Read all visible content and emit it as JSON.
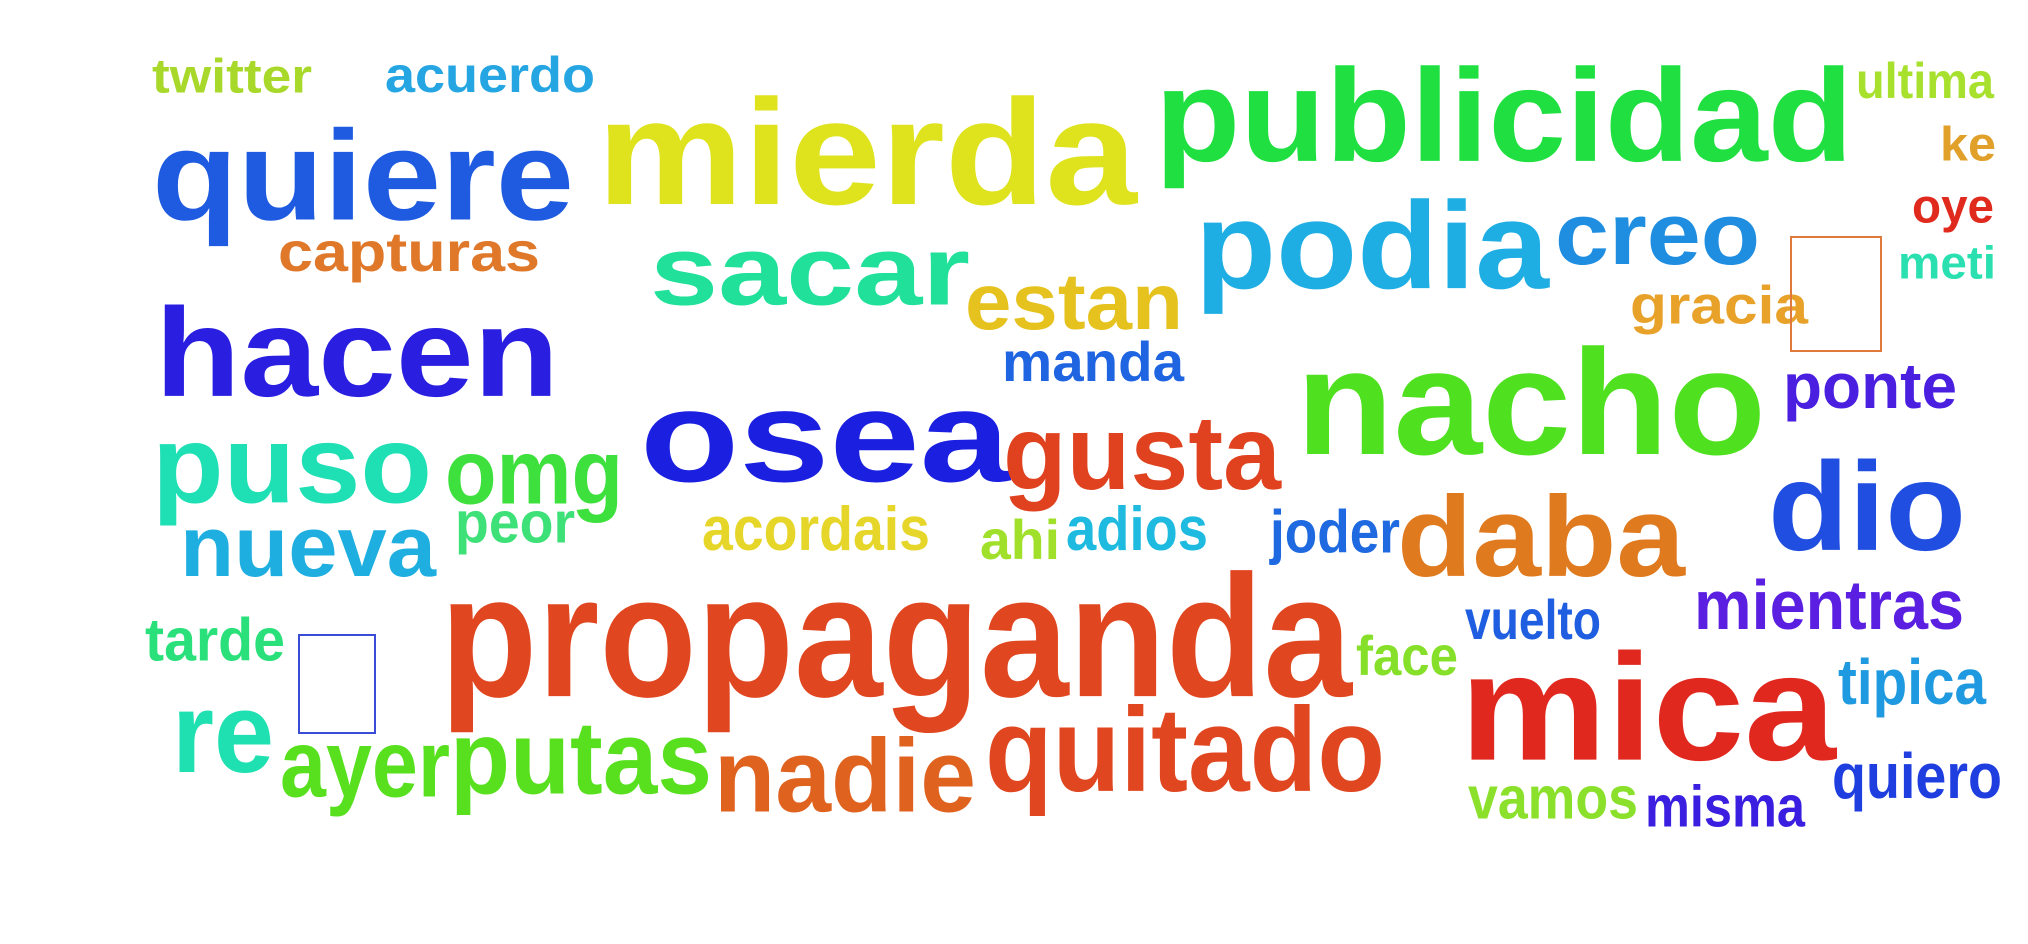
{
  "words": [
    {
      "text": "twitter",
      "color": "#a8d82a"
    },
    {
      "text": "acuerdo",
      "color": "#25a6e3"
    },
    {
      "text": "quiere",
      "color": "#1f5be0"
    },
    {
      "text": "mierda",
      "color": "#dfe31e"
    },
    {
      "text": "publicidad",
      "color": "#1fe040"
    },
    {
      "text": "ultima",
      "color": "#a8e02e"
    },
    {
      "text": "ke",
      "color": "#e0a02a"
    },
    {
      "text": "oye",
      "color": "#e02a1e"
    },
    {
      "text": "meti",
      "color": "#2ae0b0"
    },
    {
      "text": "capturas",
      "color": "#e0782a"
    },
    {
      "text": "sacar",
      "color": "#20e09a"
    },
    {
      "text": "estan",
      "color": "#e6c21e"
    },
    {
      "text": "podia",
      "color": "#1faee3"
    },
    {
      "text": "creo",
      "color": "#1f8ee0"
    },
    {
      "text": "gracia",
      "color": "#e8a22a"
    },
    {
      "text": "hacen",
      "color": "#2a1fe0"
    },
    {
      "text": "manda",
      "color": "#1f64e0"
    },
    {
      "text": "nacho",
      "color": "#4fe01f"
    },
    {
      "text": "ponte",
      "color": "#4a1fe0"
    },
    {
      "text": "puso",
      "color": "#1fe0b4"
    },
    {
      "text": "omg",
      "color": "#3ee03e"
    },
    {
      "text": "osea",
      "color": "#1a1fe0"
    },
    {
      "text": "gusta",
      "color": "#e0421f"
    },
    {
      "text": "dio",
      "color": "#1f4ee0"
    },
    {
      "text": "nueva",
      "color": "#1faee0"
    },
    {
      "text": "peor",
      "color": "#3ee078"
    },
    {
      "text": "acordais",
      "color": "#e6d62a"
    },
    {
      "text": "ahi",
      "color": "#a0e02a"
    },
    {
      "text": "adios",
      "color": "#1fbae0"
    },
    {
      "text": "joder",
      "color": "#1f6ae0"
    },
    {
      "text": "daba",
      "color": "#e07a1f"
    },
    {
      "text": "propaganda",
      "color": "#e0461f"
    },
    {
      "text": "mientras",
      "color": "#5a1fe0"
    },
    {
      "text": "tarde",
      "color": "#2ae07a"
    },
    {
      "text": "vuelto",
      "color": "#1f5ee0"
    },
    {
      "text": "face",
      "color": "#86e02a"
    },
    {
      "text": "mica",
      "color": "#e0281f"
    },
    {
      "text": "tipica",
      "color": "#1f9ae0"
    },
    {
      "text": "re",
      "color": "#1fe0b0"
    },
    {
      "text": "ayer",
      "color": "#58e01f"
    },
    {
      "text": "putas",
      "color": "#58e01f"
    },
    {
      "text": "nadie",
      "color": "#e0621f"
    },
    {
      "text": "quitado",
      "color": "#e0461f"
    },
    {
      "text": "vamos",
      "color": "#8ae02a"
    },
    {
      "text": "misma",
      "color": "#3a1fe0"
    },
    {
      "text": "quiero",
      "color": "#1f3ee0"
    }
  ]
}
